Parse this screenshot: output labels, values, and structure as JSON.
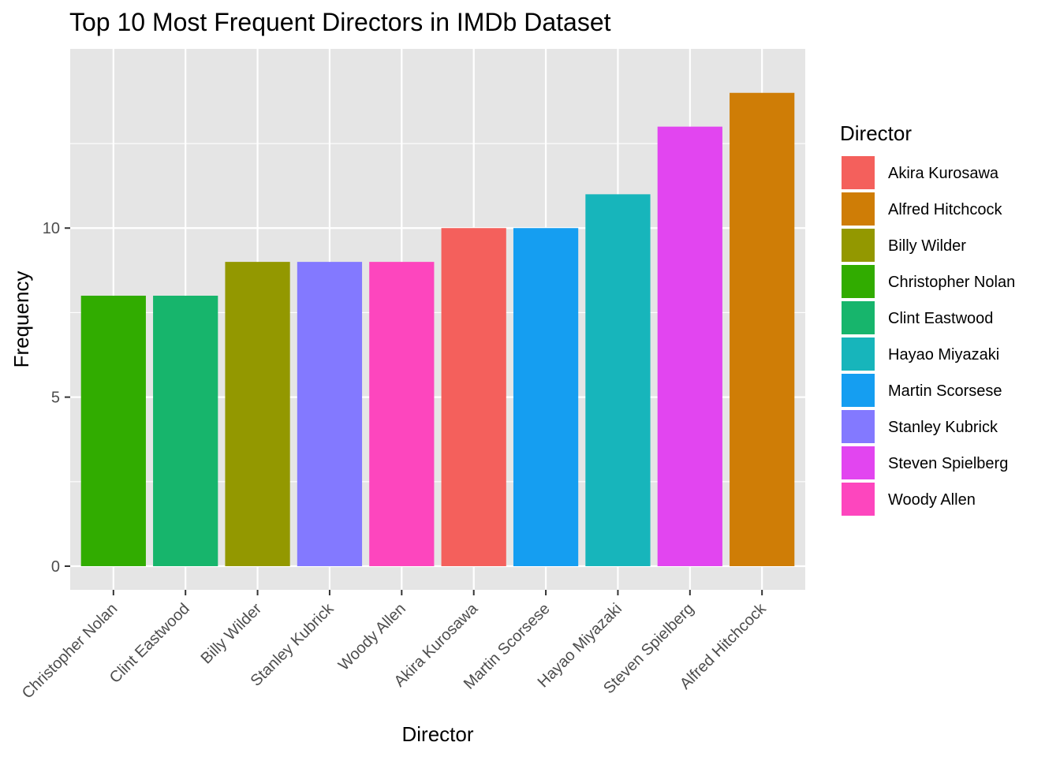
{
  "chart_data": {
    "type": "bar",
    "title": "Top 10 Most Frequent Directors in IMDb Dataset",
    "xlabel": "Director",
    "ylabel": "Frequency",
    "ylim": [
      -0.7,
      15.3
    ],
    "yticks": [
      0,
      5,
      10
    ],
    "grid": true,
    "panel_background": "#e5e5e5",
    "grid_color": "#ffffff",
    "categories": [
      "Christopher Nolan",
      "Clint Eastwood",
      "Billy Wilder",
      "Stanley Kubrick",
      "Woody Allen",
      "Akira Kurosawa",
      "Martin Scorsese",
      "Hayao Miyazaki",
      "Steven Spielberg",
      "Alfred Hitchcock"
    ],
    "values": [
      8,
      8,
      9,
      9,
      9,
      10,
      10,
      11,
      13,
      14
    ],
    "colors": [
      "#31ac00",
      "#17b56c",
      "#939800",
      "#8379ff",
      "#fd46be",
      "#f4605c",
      "#159ef1",
      "#17b5bb",
      "#e245f0",
      "#cf7d06"
    ],
    "legend": {
      "title": "Director",
      "position": "right",
      "entries": [
        {
          "label": "Akira Kurosawa",
          "color": "#f4605c"
        },
        {
          "label": "Alfred Hitchcock",
          "color": "#cf7d06"
        },
        {
          "label": "Billy Wilder",
          "color": "#939800"
        },
        {
          "label": "Christopher Nolan",
          "color": "#31ac00"
        },
        {
          "label": "Clint Eastwood",
          "color": "#17b56c"
        },
        {
          "label": "Hayao Miyazaki",
          "color": "#17b5bb"
        },
        {
          "label": "Martin Scorsese",
          "color": "#159ef1"
        },
        {
          "label": "Stanley Kubrick",
          "color": "#8379ff"
        },
        {
          "label": "Steven Spielberg",
          "color": "#e245f0"
        },
        {
          "label": "Woody Allen",
          "color": "#fd46be"
        }
      ]
    }
  }
}
